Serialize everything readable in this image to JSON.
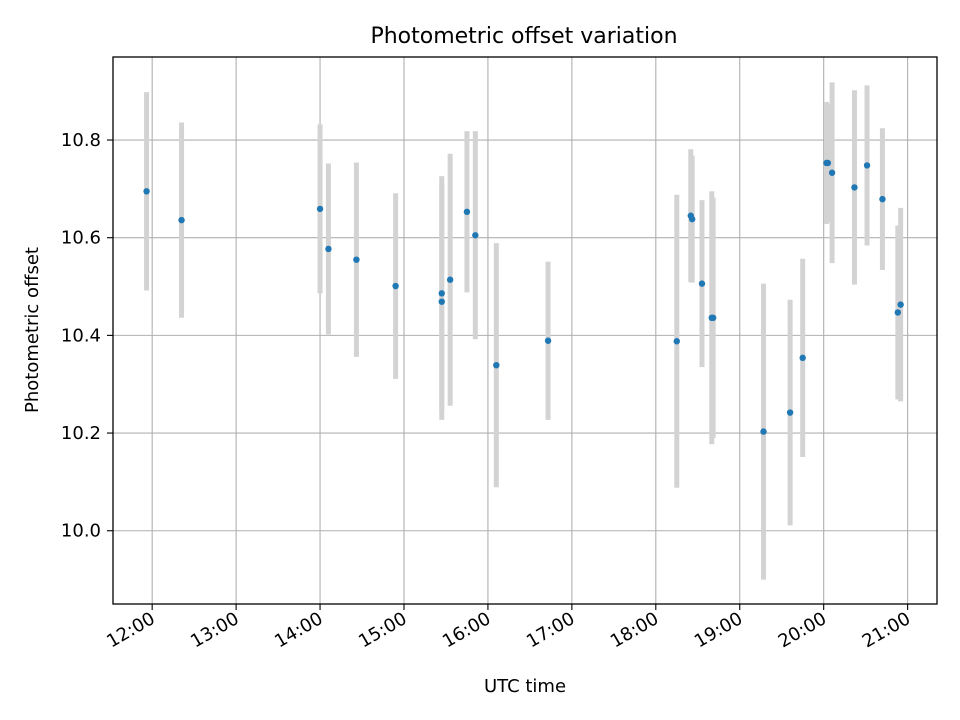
{
  "chart_data": {
    "type": "scatter",
    "title": "Photometric offset variation",
    "xlabel": "UTC time",
    "ylabel": "Photometric offset",
    "x_ticks": [
      "12:00",
      "13:00",
      "14:00",
      "15:00",
      "16:00",
      "17:00",
      "18:00",
      "19:00",
      "20:00",
      "21:00"
    ],
    "y_ticks": [
      "10.0",
      "10.2",
      "10.4",
      "10.6",
      "10.8"
    ],
    "xlim": [
      "11:32",
      "21:21"
    ],
    "ylim": [
      9.85,
      10.97
    ],
    "grid": true,
    "marker_color": "#1f77b4",
    "errorbar_color": "#d3d3d3",
    "points": [
      {
        "x": "11:56",
        "y": 10.695,
        "err": 0.203
      },
      {
        "x": "12:21",
        "y": 10.636,
        "err": 0.2
      },
      {
        "x": "14:00",
        "y": 10.659,
        "err": 0.173
      },
      {
        "x": "14:06",
        "y": 10.577,
        "err": 0.175
      },
      {
        "x": "14:26",
        "y": 10.555,
        "err": 0.199
      },
      {
        "x": "14:54",
        "y": 10.501,
        "err": 0.19
      },
      {
        "x": "15:27",
        "y": 10.486,
        "err": 0.24
      },
      {
        "x": "15:27",
        "y": 10.469,
        "err": 0.242
      },
      {
        "x": "15:33",
        "y": 10.514,
        "err": 0.258
      },
      {
        "x": "15:45",
        "y": 10.653,
        "err": 0.165
      },
      {
        "x": "15:51",
        "y": 10.605,
        "err": 0.213
      },
      {
        "x": "16:06",
        "y": 10.339,
        "err": 0.25
      },
      {
        "x": "16:43",
        "y": 10.389,
        "err": 0.162
      },
      {
        "x": "18:15",
        "y": 10.388,
        "err": 0.3
      },
      {
        "x": "18:25",
        "y": 10.645,
        "err": 0.136
      },
      {
        "x": "18:26",
        "y": 10.638,
        "err": 0.13
      },
      {
        "x": "18:33",
        "y": 10.506,
        "err": 0.171
      },
      {
        "x": "18:40",
        "y": 10.436,
        "err": 0.259
      },
      {
        "x": "18:41",
        "y": 10.436,
        "err": 0.246
      },
      {
        "x": "19:17",
        "y": 10.203,
        "err": 0.303
      },
      {
        "x": "19:36",
        "y": 10.242,
        "err": 0.231
      },
      {
        "x": "19:45",
        "y": 10.354,
        "err": 0.203
      },
      {
        "x": "20:02",
        "y": 10.753,
        "err": 0.125
      },
      {
        "x": "20:03",
        "y": 10.753,
        "err": 0.121
      },
      {
        "x": "20:06",
        "y": 10.733,
        "err": 0.185
      },
      {
        "x": "20:22",
        "y": 10.703,
        "err": 0.199
      },
      {
        "x": "20:31",
        "y": 10.748,
        "err": 0.164
      },
      {
        "x": "20:42",
        "y": 10.679,
        "err": 0.145
      },
      {
        "x": "20:53",
        "y": 10.447,
        "err": 0.178
      },
      {
        "x": "20:55",
        "y": 10.463,
        "err": 0.198
      }
    ]
  }
}
